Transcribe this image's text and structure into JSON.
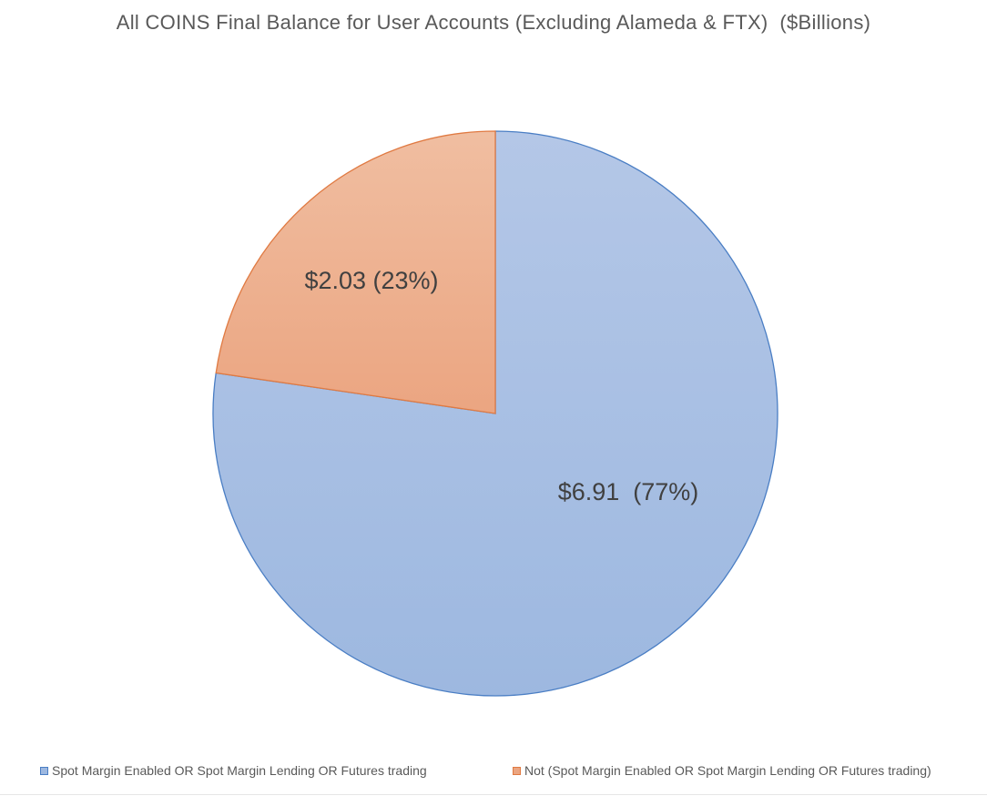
{
  "chart_data": {
    "type": "pie",
    "title": "All COINS Final Balance for User Accounts (Excluding Alameda & FTX)  ($Billions)",
    "unit": "$Billions",
    "slices": [
      {
        "name": "Spot Margin Enabled OR Spot Margin Lending OR Futures trading",
        "value": 6.91,
        "percent": 77,
        "label": "$6.91  (77%)",
        "color": "#9db8e0",
        "color_light": "#b4c7e7",
        "stroke": "#4a7ec4"
      },
      {
        "name": "Not (Spot Margin Enabled OR Spot Margin Lending OR Futures trading)",
        "value": 2.03,
        "percent": 23,
        "label": "$2.03 (23%)",
        "color": "#eba581",
        "color_light": "#f0bea1",
        "stroke": "#e07a42"
      }
    ],
    "start_angle_deg": 0,
    "direction": "clockwise",
    "legend_position": "bottom"
  }
}
